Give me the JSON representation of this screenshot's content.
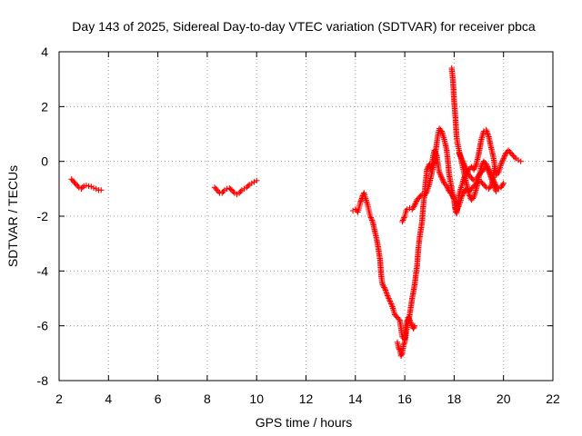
{
  "chart_data": {
    "type": "scatter",
    "title": "Day 143 of 2025, Sidereal Day-to-day VTEC variation (SDTVAR) for receiver pbca",
    "xlabel": "GPS time / hours",
    "ylabel": "SDTVAR / TECUs",
    "xlim": [
      2,
      22
    ],
    "ylim": [
      -8,
      4
    ],
    "xticks": [
      "2",
      "4",
      "6",
      "8",
      "10",
      "12",
      "14",
      "16",
      "18",
      "20",
      "22"
    ],
    "yticks": [
      "4",
      "2",
      "0",
      "-2",
      "-4",
      "-6",
      "-8"
    ],
    "grid": true,
    "legend": "none",
    "marker": "plus",
    "color": "#ff0000",
    "series": [
      {
        "segments": [
          [
            [
              2.5,
              -0.65
            ],
            [
              2.6,
              -0.75
            ],
            [
              2.7,
              -0.85
            ],
            [
              2.8,
              -0.95
            ],
            [
              2.9,
              -1.0
            ],
            [
              3.0,
              -0.9
            ],
            [
              3.1,
              -0.88
            ],
            [
              3.2,
              -0.9
            ],
            [
              3.3,
              -0.92
            ],
            [
              3.4,
              -0.97
            ],
            [
              3.5,
              -1.0
            ],
            [
              3.6,
              -1.05
            ],
            [
              3.7,
              -1.05
            ]
          ],
          [
            [
              8.3,
              -0.95
            ],
            [
              8.4,
              -1.05
            ],
            [
              8.5,
              -1.15
            ],
            [
              8.6,
              -1.15
            ],
            [
              8.7,
              -1.05
            ],
            [
              8.8,
              -1.0
            ],
            [
              8.9,
              -0.98
            ],
            [
              9.0,
              -1.05
            ],
            [
              9.1,
              -1.15
            ],
            [
              9.2,
              -1.2
            ],
            [
              9.3,
              -1.15
            ],
            [
              9.4,
              -1.05
            ],
            [
              9.5,
              -1.0
            ],
            [
              9.6,
              -0.95
            ],
            [
              9.7,
              -0.85
            ],
            [
              9.8,
              -0.8
            ],
            [
              9.9,
              -0.75
            ],
            [
              10.0,
              -0.7
            ]
          ],
          [
            [
              13.9,
              -1.8
            ],
            [
              14.0,
              -1.75
            ],
            [
              14.1,
              -1.85
            ],
            [
              14.15,
              -1.7
            ],
            [
              14.2,
              -1.5
            ],
            [
              14.3,
              -1.25
            ],
            [
              14.35,
              -1.15
            ],
            [
              14.4,
              -1.3
            ],
            [
              14.5,
              -1.6
            ],
            [
              14.55,
              -1.8
            ],
            [
              14.6,
              -2.0
            ],
            [
              14.7,
              -2.2
            ],
            [
              14.8,
              -2.6
            ],
            [
              14.9,
              -3.0
            ],
            [
              15.0,
              -3.6
            ],
            [
              15.05,
              -4.2
            ],
            [
              15.1,
              -4.5
            ],
            [
              15.2,
              -4.65
            ],
            [
              15.3,
              -4.9
            ],
            [
              15.4,
              -5.1
            ],
            [
              15.5,
              -5.3
            ],
            [
              15.6,
              -5.6
            ],
            [
              15.7,
              -5.7
            ],
            [
              15.8,
              -5.8
            ],
            [
              15.85,
              -6.1
            ],
            [
              15.9,
              -6.4
            ],
            [
              16.0,
              -6.5
            ],
            [
              16.05,
              -6.0
            ],
            [
              16.1,
              -5.8
            ],
            [
              16.15,
              -5.7
            ],
            [
              16.2,
              -5.8
            ],
            [
              16.25,
              -5.9
            ],
            [
              16.3,
              -6.0
            ],
            [
              16.35,
              -6.1
            ],
            [
              16.4,
              -6.0
            ]
          ],
          [
            [
              15.7,
              -6.6
            ],
            [
              15.75,
              -6.8
            ],
            [
              15.8,
              -6.9
            ],
            [
              15.85,
              -7.1
            ],
            [
              15.9,
              -7.0
            ],
            [
              15.95,
              -6.7
            ],
            [
              16.0,
              -6.6
            ],
            [
              16.05,
              -6.3
            ],
            [
              16.1,
              -6.0
            ],
            [
              16.2,
              -5.6
            ],
            [
              16.3,
              -5.0
            ],
            [
              16.4,
              -4.5
            ],
            [
              16.5,
              -3.8
            ],
            [
              16.55,
              -3.2
            ],
            [
              16.6,
              -2.8
            ],
            [
              16.7,
              -2.2
            ],
            [
              16.75,
              -1.6
            ],
            [
              16.8,
              -1.2
            ],
            [
              16.85,
              -0.7
            ],
            [
              16.9,
              -0.3
            ],
            [
              17.0,
              -0.1
            ],
            [
              17.05,
              -0.3
            ],
            [
              17.1,
              -0.1
            ],
            [
              17.15,
              0.2
            ],
            [
              17.2,
              0.4
            ],
            [
              17.3,
              0.2
            ],
            [
              17.35,
              -0.15
            ],
            [
              17.4,
              -0.4
            ],
            [
              17.5,
              -0.6
            ],
            [
              17.6,
              -0.8
            ],
            [
              17.7,
              -0.9
            ],
            [
              17.8,
              -1.1
            ],
            [
              17.9,
              -1.2
            ],
            [
              18.0,
              -1.4
            ],
            [
              18.05,
              -1.7
            ],
            [
              18.1,
              -1.8
            ],
            [
              18.2,
              -1.6
            ],
            [
              18.3,
              -1.3
            ],
            [
              18.4,
              -1.1
            ],
            [
              18.5,
              -1.0
            ],
            [
              18.6,
              -1.1
            ],
            [
              18.7,
              -1.0
            ],
            [
              18.8,
              -0.9
            ],
            [
              18.9,
              -0.8
            ],
            [
              19.0,
              -0.7
            ],
            [
              19.1,
              -0.75
            ],
            [
              19.2,
              -0.85
            ],
            [
              19.3,
              -0.95
            ],
            [
              19.4,
              -1.0
            ],
            [
              19.5,
              -0.9
            ],
            [
              19.55,
              -0.7
            ],
            [
              19.6,
              -0.45
            ],
            [
              19.65,
              -0.2
            ]
          ],
          [
            [
              15.9,
              -2.2
            ],
            [
              16.0,
              -2.0
            ],
            [
              16.05,
              -1.8
            ],
            [
              16.1,
              -1.75
            ],
            [
              16.2,
              -1.7
            ],
            [
              16.3,
              -1.75
            ],
            [
              16.4,
              -1.6
            ],
            [
              16.5,
              -1.4
            ],
            [
              16.6,
              -1.3
            ],
            [
              16.7,
              -1.2
            ],
            [
              16.8,
              -1.25
            ],
            [
              16.9,
              -1.1
            ],
            [
              17.0,
              -0.8
            ],
            [
              17.1,
              -0.4
            ],
            [
              17.2,
              0.0
            ],
            [
              17.3,
              0.7
            ],
            [
              17.35,
              1.0
            ],
            [
              17.4,
              1.2
            ],
            [
              17.5,
              1.1
            ],
            [
              17.6,
              0.8
            ],
            [
              17.7,
              0.4
            ],
            [
              17.75,
              0.0
            ],
            [
              17.8,
              -0.5
            ],
            [
              17.9,
              -1.0
            ],
            [
              18.0,
              -1.4
            ],
            [
              18.05,
              -1.8
            ],
            [
              18.1,
              -1.9
            ],
            [
              18.15,
              -1.6
            ],
            [
              18.2,
              -1.2
            ],
            [
              18.3,
              -0.9
            ],
            [
              18.4,
              -0.6
            ],
            [
              18.5,
              -0.4
            ],
            [
              18.6,
              -0.3
            ],
            [
              18.7,
              -0.2
            ],
            [
              18.8,
              -0.3
            ],
            [
              18.9,
              -0.1
            ],
            [
              19.0,
              0.3
            ],
            [
              19.1,
              0.8
            ],
            [
              19.2,
              1.1
            ],
            [
              19.3,
              1.15
            ],
            [
              19.4,
              0.9
            ],
            [
              19.5,
              0.5
            ],
            [
              19.6,
              0.1
            ],
            [
              19.65,
              -0.2
            ],
            [
              19.7,
              -0.5
            ],
            [
              19.8,
              -0.4
            ],
            [
              19.9,
              -0.1
            ],
            [
              20.0,
              0.1
            ],
            [
              20.1,
              0.3
            ],
            [
              20.2,
              0.4
            ],
            [
              20.3,
              0.3
            ],
            [
              20.4,
              0.2
            ],
            [
              20.5,
              0.1
            ],
            [
              20.6,
              0.05
            ],
            [
              20.7,
              0.0
            ]
          ],
          [
            [
              17.9,
              3.4
            ],
            [
              17.95,
              3.0
            ],
            [
              18.0,
              2.2
            ],
            [
              18.05,
              1.6
            ],
            [
              18.1,
              0.9
            ],
            [
              18.15,
              0.6
            ],
            [
              18.2,
              0.4
            ],
            [
              18.3,
              0.0
            ],
            [
              18.4,
              -0.4
            ],
            [
              18.5,
              -0.8
            ],
            [
              18.6,
              -1.2
            ],
            [
              18.7,
              -1.4
            ],
            [
              18.8,
              -1.3
            ],
            [
              18.9,
              -1.0
            ],
            [
              19.0,
              -0.6
            ],
            [
              19.1,
              -0.2
            ],
            [
              19.2,
              0.0
            ],
            [
              19.3,
              -0.1
            ],
            [
              19.4,
              -0.3
            ],
            [
              19.5,
              -0.5
            ],
            [
              19.6,
              -0.7
            ],
            [
              19.7,
              -0.9
            ],
            [
              19.8,
              -1.0
            ],
            [
              19.9,
              -0.95
            ],
            [
              20.0,
              -0.8
            ]
          ],
          [
            [
              18.2,
              0.3
            ],
            [
              18.3,
              0.1
            ],
            [
              18.4,
              -0.1
            ],
            [
              18.5,
              -0.3
            ],
            [
              18.6,
              -0.5
            ],
            [
              18.7,
              -0.6
            ],
            [
              18.8,
              -0.7
            ],
            [
              18.9,
              -0.65
            ],
            [
              19.0,
              -0.5
            ],
            [
              19.1,
              -0.4
            ],
            [
              19.2,
              -0.3
            ],
            [
              19.3,
              -0.2
            ],
            [
              19.4,
              -0.35
            ],
            [
              19.5,
              -0.6
            ],
            [
              19.6,
              -0.85
            ],
            [
              19.7,
              -1.1
            ]
          ]
        ]
      }
    ]
  }
}
